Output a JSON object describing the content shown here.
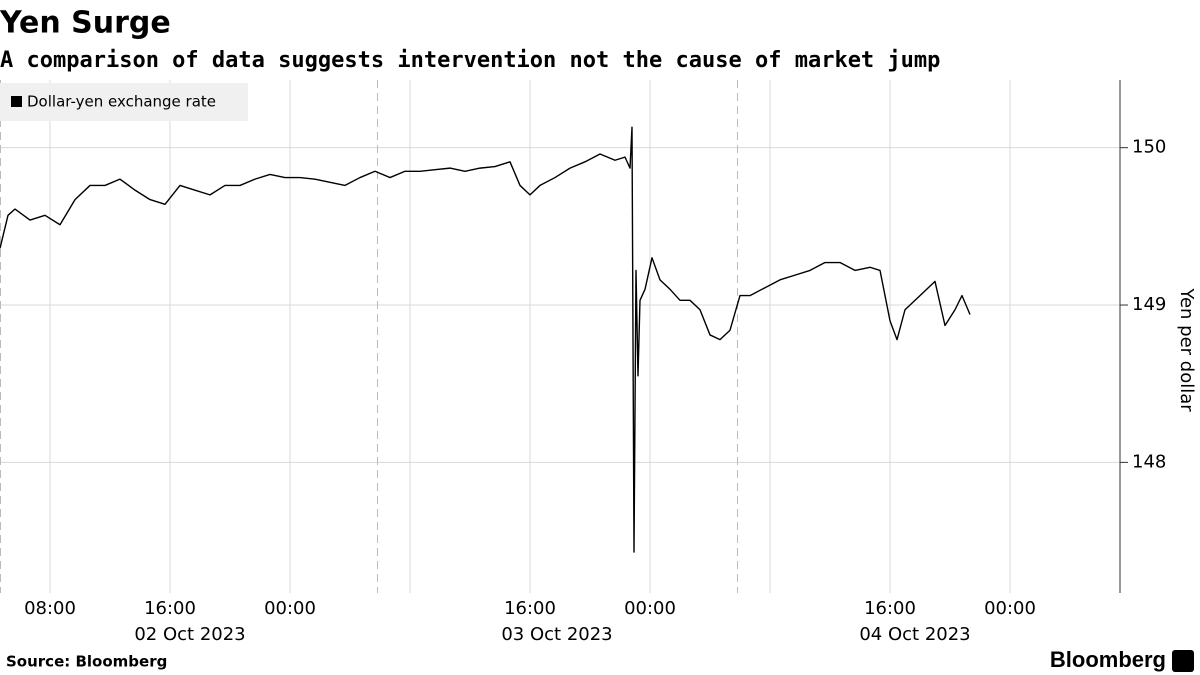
{
  "chart_data": {
    "type": "line",
    "title": "Yen Surge",
    "subtitle": "A comparison of data suggests intervention not the cause of market jump",
    "y_label": "Yen per dollar",
    "source": "Source: Bloomberg",
    "brand": "Bloomberg",
    "x": [
      "2023-10-02T04:40",
      "2023-10-02T05:12",
      "2023-10-02T05:40",
      "2023-10-02T06:40",
      "2023-10-02T07:40",
      "2023-10-02T08:40",
      "2023-10-02T09:40",
      "2023-10-02T10:40",
      "2023-10-02T11:40",
      "2023-10-02T12:40",
      "2023-10-02T13:40",
      "2023-10-02T14:40",
      "2023-10-02T15:40",
      "2023-10-02T16:40",
      "2023-10-02T17:40",
      "2023-10-02T18:40",
      "2023-10-02T19:40",
      "2023-10-02T20:40",
      "2023-10-02T21:40",
      "2023-10-02T22:40",
      "2023-10-02T23:40",
      "2023-10-03T00:40",
      "2023-10-03T01:40",
      "2023-10-03T02:40",
      "2023-10-03T03:40",
      "2023-10-03T04:40",
      "2023-10-03T05:40",
      "2023-10-03T06:40",
      "2023-10-03T07:40",
      "2023-10-03T08:40",
      "2023-10-03T09:40",
      "2023-10-03T10:40",
      "2023-10-03T11:40",
      "2023-10-03T12:40",
      "2023-10-03T13:40",
      "2023-10-03T14:40",
      "2023-10-03T15:20",
      "2023-10-03T16:00",
      "2023-10-03T16:40",
      "2023-10-03T17:40",
      "2023-10-03T18:40",
      "2023-10-03T19:40",
      "2023-10-03T20:40",
      "2023-10-03T21:40",
      "2023-10-03T22:20",
      "2023-10-03T22:40",
      "2023-10-03T22:48",
      "2023-10-03T22:56",
      "2023-10-03T23:04",
      "2023-10-03T23:12",
      "2023-10-03T23:20",
      "2023-10-03T23:40",
      "2023-10-04T00:08",
      "2023-10-04T00:40",
      "2023-10-04T01:20",
      "2023-10-04T02:00",
      "2023-10-04T02:40",
      "2023-10-04T03:20",
      "2023-10-04T04:00",
      "2023-10-04T04:40",
      "2023-10-04T05:20",
      "2023-10-04T06:00",
      "2023-10-04T06:40",
      "2023-10-04T07:40",
      "2023-10-04T08:40",
      "2023-10-04T09:40",
      "2023-10-04T10:40",
      "2023-10-04T11:40",
      "2023-10-04T12:40",
      "2023-10-04T13:40",
      "2023-10-04T14:40",
      "2023-10-04T15:20",
      "2023-10-04T16:00",
      "2023-10-04T16:28",
      "2023-10-04T17:00",
      "2023-10-04T18:00",
      "2023-10-04T19:00",
      "2023-10-04T19:40",
      "2023-10-04T20:20",
      "2023-10-04T20:48",
      "2023-10-04T21:20"
    ],
    "series": [
      {
        "name": "Dollar-yen exchange rate",
        "color": "#000000",
        "values": [
          149.36,
          149.57,
          149.61,
          149.54,
          149.57,
          149.51,
          149.67,
          149.76,
          149.76,
          149.8,
          149.73,
          149.67,
          149.64,
          149.76,
          149.73,
          149.7,
          149.76,
          149.76,
          149.8,
          149.83,
          149.81,
          149.81,
          149.8,
          149.78,
          149.76,
          149.81,
          149.85,
          149.81,
          149.85,
          149.85,
          149.86,
          149.87,
          149.85,
          149.87,
          149.88,
          149.91,
          149.76,
          149.7,
          149.76,
          149.81,
          149.87,
          149.91,
          149.96,
          149.92,
          149.94,
          149.87,
          150.13,
          147.43,
          149.22,
          148.55,
          149.03,
          149.1,
          149.3,
          149.16,
          149.1,
          149.03,
          149.03,
          148.97,
          148.81,
          148.78,
          148.84,
          149.06,
          149.06,
          149.11,
          149.16,
          149.19,
          149.22,
          149.27,
          149.27,
          149.22,
          149.24,
          149.22,
          148.9,
          148.78,
          148.97,
          149.06,
          149.15,
          148.87,
          148.97,
          149.06,
          148.94
        ]
      }
    ],
    "xlim": [
      "2023-10-02T04:40",
      "2023-10-05T07:20"
    ],
    "xticks": [
      {
        "value": "2023-10-02T08:00",
        "label": "08:00"
      },
      {
        "value": "2023-10-02T16:00",
        "label": "16:00"
      },
      {
        "value": "2023-10-03T00:00",
        "label": "00:00"
      },
      {
        "value": "2023-10-03T16:00",
        "label": "16:00"
      },
      {
        "value": "2023-10-04T00:00",
        "label": "00:00"
      },
      {
        "value": "2023-10-04T16:00",
        "label": "16:00"
      },
      {
        "value": "2023-10-05T00:00",
        "label": "00:00"
      }
    ],
    "x_date_labels": [
      {
        "value": "2023-10-02T17:20",
        "label": "02 Oct 2023"
      },
      {
        "value": "2023-10-03T17:48",
        "label": "03 Oct 2023"
      },
      {
        "value": "2023-10-04T17:40",
        "label": "04 Oct 2023"
      }
    ],
    "x_minor_grid": [
      "2023-10-03T08:00",
      "2023-10-04T08:00"
    ],
    "x_dashed_lines": [
      "2023-10-02T04:40",
      "2023-10-03T05:48",
      "2023-10-04T05:48"
    ],
    "ylim": [
      147.17,
      150.43
    ],
    "yticks": [
      148,
      149,
      150
    ],
    "grid": true,
    "legend": "top-left",
    "y_axis_side": "right"
  }
}
